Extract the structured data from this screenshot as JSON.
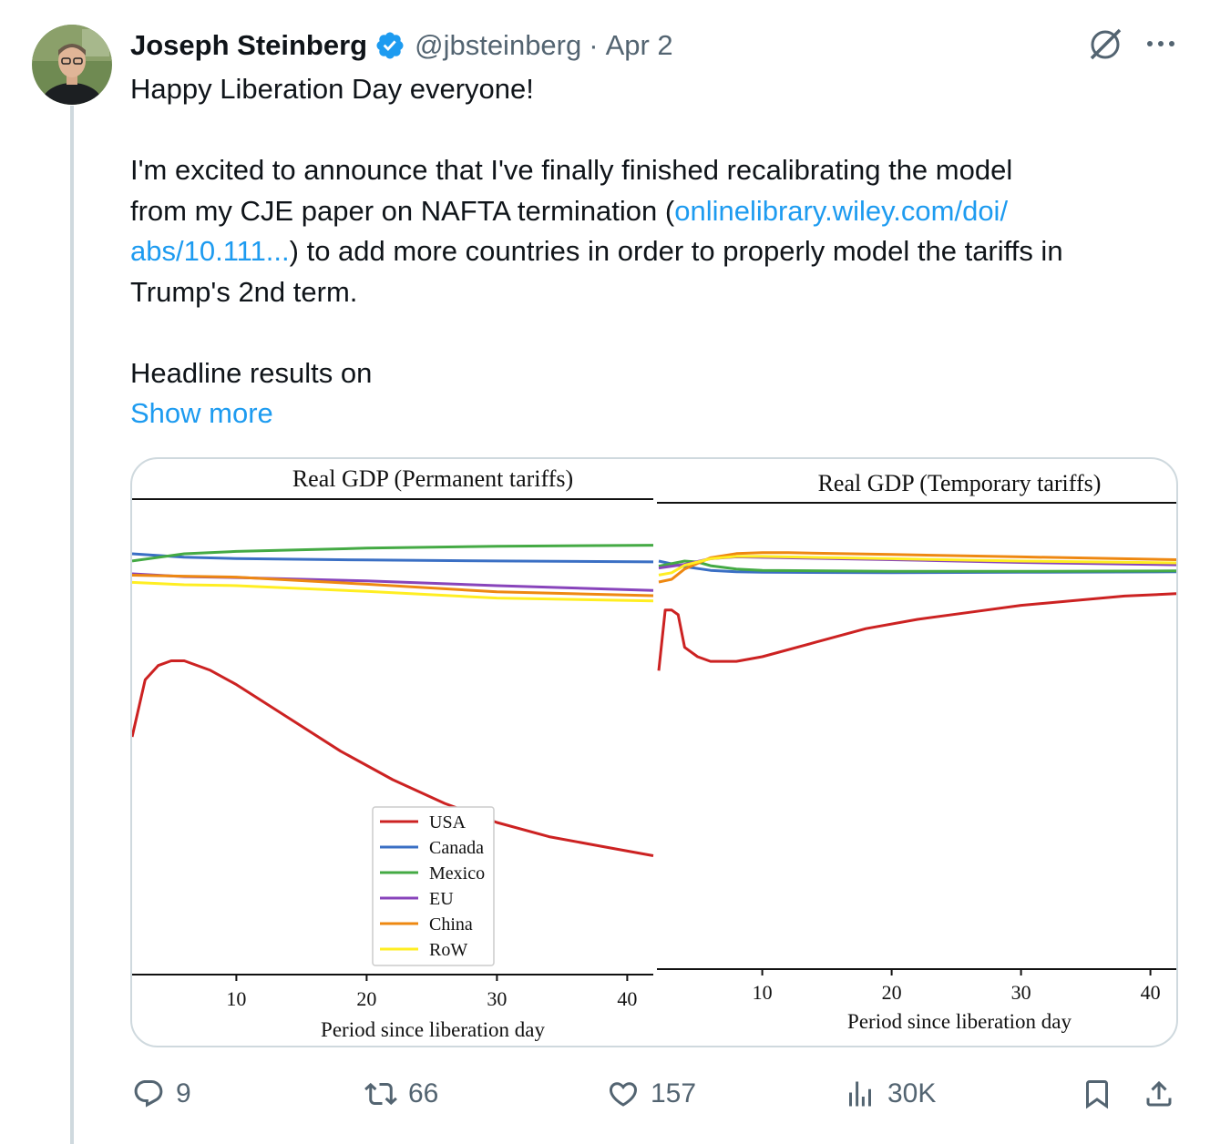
{
  "author": {
    "name": "Joseph Steinberg",
    "handle": "@jbsteinberg",
    "separator": "·",
    "date": "Apr 2",
    "verified": true
  },
  "post": {
    "line1": "Happy Liberation Day everyone!",
    "line2a": "I'm excited to announce that I've finally finished recalibrating the model",
    "line2b": "from my CJE paper on NAFTA termination (",
    "link1": "onlinelibrary.wiley.com/doi/",
    "link2": "abs/10.111...",
    "line2c": ") to add more countries in order to properly model the tariffs in",
    "line2d": "Trump's 2nd term.",
    "line3": "Headline results on",
    "show_more": "Show more"
  },
  "chart_data": [
    {
      "type": "line",
      "title": "Real GDP (Permanent tariffs)",
      "xlabel": "Period since liberation day",
      "ylabel": "",
      "xlim": [
        2,
        42
      ],
      "ylim": [
        0,
        1
      ],
      "xticks": [
        "10",
        "20",
        "30",
        "40"
      ],
      "grid": false,
      "legend_position": "bottom-center",
      "series": [
        {
          "name": "USA",
          "color": "#cc2222",
          "x": [
            2,
            3,
            4,
            5,
            6,
            8,
            10,
            14,
            18,
            22,
            26,
            30,
            34,
            38,
            42
          ],
          "values": [
            0.5,
            0.62,
            0.65,
            0.66,
            0.66,
            0.64,
            0.61,
            0.54,
            0.47,
            0.41,
            0.36,
            0.32,
            0.29,
            0.27,
            0.25
          ]
        },
        {
          "name": "Canada",
          "color": "#3a6fc4",
          "x": [
            2,
            6,
            10,
            20,
            30,
            42
          ],
          "values": [
            0.885,
            0.878,
            0.875,
            0.872,
            0.87,
            0.868
          ]
        },
        {
          "name": "Mexico",
          "color": "#44aa44",
          "x": [
            2,
            6,
            10,
            20,
            30,
            42
          ],
          "values": [
            0.87,
            0.885,
            0.89,
            0.897,
            0.901,
            0.903
          ]
        },
        {
          "name": "EU",
          "color": "#8844bb",
          "x": [
            2,
            6,
            10,
            20,
            30,
            42
          ],
          "values": [
            0.843,
            0.837,
            0.835,
            0.828,
            0.818,
            0.808
          ]
        },
        {
          "name": "China",
          "color": "#ee8811",
          "x": [
            2,
            6,
            10,
            20,
            30,
            42
          ],
          "values": [
            0.84,
            0.838,
            0.836,
            0.821,
            0.805,
            0.797
          ]
        },
        {
          "name": "RoW",
          "color": "#ffee22",
          "x": [
            2,
            6,
            10,
            20,
            30,
            42
          ],
          "values": [
            0.825,
            0.82,
            0.818,
            0.806,
            0.792,
            0.786
          ]
        }
      ]
    },
    {
      "type": "line",
      "title": "Real GDP (Temporary tariffs)",
      "xlabel": "Period since liberation day",
      "ylabel": "",
      "xlim": [
        2,
        42
      ],
      "ylim": [
        0,
        1
      ],
      "xticks": [
        "10",
        "20",
        "30",
        "40"
      ],
      "grid": false,
      "series": [
        {
          "name": "USA",
          "color": "#cc2222",
          "x": [
            2,
            2.5,
            3,
            3.5,
            4,
            5,
            6,
            7,
            8,
            10,
            14,
            18,
            22,
            26,
            30,
            34,
            38,
            42
          ],
          "values": [
            0.64,
            0.77,
            0.77,
            0.76,
            0.69,
            0.67,
            0.66,
            0.66,
            0.66,
            0.67,
            0.7,
            0.73,
            0.75,
            0.765,
            0.78,
            0.79,
            0.8,
            0.805
          ]
        },
        {
          "name": "Canada",
          "color": "#3a6fc4",
          "x": [
            2,
            4,
            6,
            8,
            10,
            20,
            30,
            42
          ],
          "values": [
            0.875,
            0.863,
            0.855,
            0.852,
            0.851,
            0.85,
            0.851,
            0.852
          ]
        },
        {
          "name": "Mexico",
          "color": "#44aa44",
          "x": [
            2,
            4,
            5,
            6,
            8,
            10,
            20,
            30,
            42
          ],
          "values": [
            0.864,
            0.875,
            0.873,
            0.865,
            0.858,
            0.855,
            0.853,
            0.853,
            0.854
          ]
        },
        {
          "name": "EU",
          "color": "#8844bb",
          "x": [
            2,
            4,
            6,
            8,
            10,
            20,
            30,
            42
          ],
          "values": [
            0.86,
            0.868,
            0.88,
            0.884,
            0.883,
            0.878,
            0.872,
            0.867
          ]
        },
        {
          "name": "China",
          "color": "#ee8811",
          "x": [
            2,
            3,
            4,
            6,
            8,
            10,
            12,
            20,
            30,
            42
          ],
          "values": [
            0.83,
            0.836,
            0.858,
            0.882,
            0.891,
            0.893,
            0.893,
            0.889,
            0.884,
            0.878
          ]
        },
        {
          "name": "RoW",
          "color": "#ffee22",
          "x": [
            2,
            3,
            4,
            6,
            8,
            10,
            20,
            30,
            42
          ],
          "values": [
            0.845,
            0.85,
            0.866,
            0.88,
            0.885,
            0.885,
            0.88,
            0.875,
            0.871
          ]
        }
      ]
    }
  ],
  "actions": {
    "replies": "9",
    "reposts": "66",
    "likes": "157",
    "views": "30K"
  },
  "colors": {
    "link": "#1d9bf0",
    "secondary_text": "#536471",
    "verified_badge": "#1d9bf0",
    "border": "#cfd9de"
  }
}
